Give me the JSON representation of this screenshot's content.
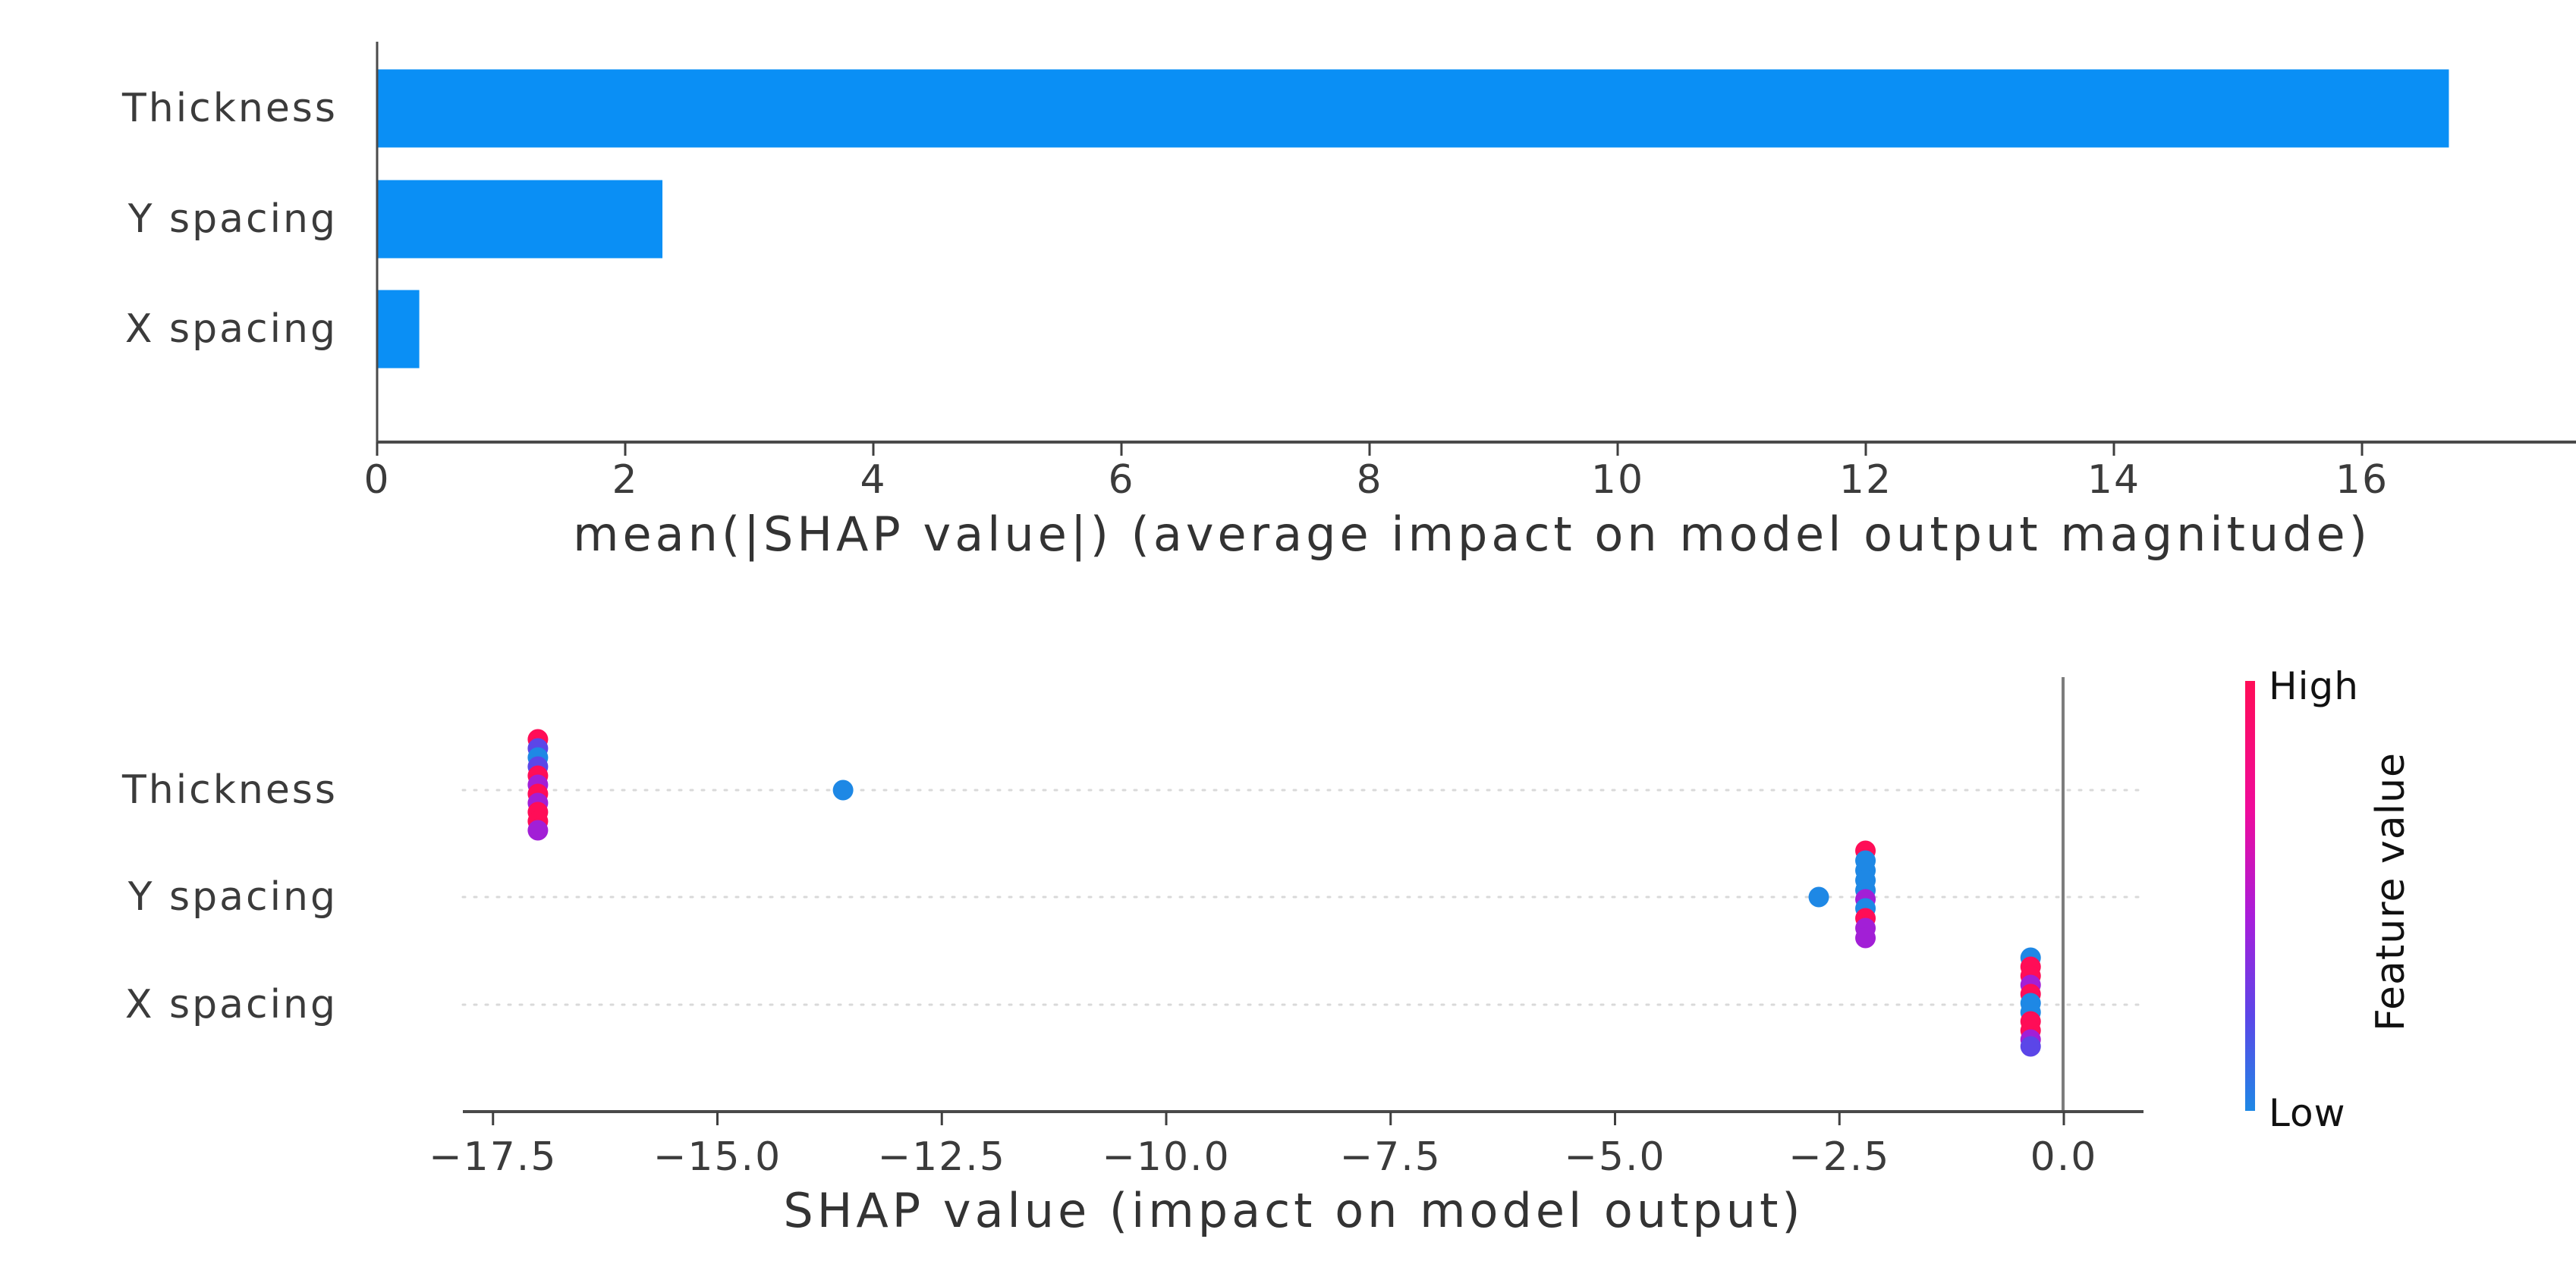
{
  "colors": {
    "bar_blue": "#0a8ff5",
    "dot_high": "#ff0d57",
    "dot_low": "#1e88e5",
    "dot_mid": "#a21fd6",
    "dot_violet": "#5b46e8",
    "axis": "#4a4a4a",
    "tick": "#3f3f3f",
    "grid": "#d9d9d9",
    "zero_line": "#7d7d7d",
    "text": "#333333"
  },
  "chart_data": [
    {
      "type": "bar",
      "title": "",
      "orientation": "horizontal",
      "categories": [
        "Thickness",
        "Y spacing",
        "X spacing"
      ],
      "values": [
        16.7,
        2.3,
        0.34
      ],
      "xlabel": "mean(|SHAP value|) (average impact on model output magnitude)",
      "ylabel": "",
      "xlim": [
        0,
        17.7
      ],
      "grid": false,
      "xticks": [
        {
          "v": 0,
          "label": "0"
        },
        {
          "v": 2,
          "label": "2"
        },
        {
          "v": 4,
          "label": "4"
        },
        {
          "v": 6,
          "label": "6"
        },
        {
          "v": 8,
          "label": "8"
        },
        {
          "v": 10,
          "label": "10"
        },
        {
          "v": 12,
          "label": "12"
        },
        {
          "v": 14,
          "label": "14"
        },
        {
          "v": 16,
          "label": "16"
        }
      ]
    },
    {
      "type": "scatter",
      "subtype": "shap-beeswarm",
      "title": "",
      "features": [
        "Thickness",
        "Y spacing",
        "X spacing"
      ],
      "xlabel": "SHAP value (impact on model output)",
      "xlim": [
        -18.4,
        0.9
      ],
      "grid": "dotted-rows",
      "zero_line_x": 0.0,
      "xticks": [
        {
          "v": -17.5,
          "label": "−17.5"
        },
        {
          "v": -15.0,
          "label": "−15.0"
        },
        {
          "v": -12.5,
          "label": "−12.5"
        },
        {
          "v": -10.0,
          "label": "−10.0"
        },
        {
          "v": -7.5,
          "label": "−7.5"
        },
        {
          "v": -5.0,
          "label": "−5.0"
        },
        {
          "v": -2.5,
          "label": "−2.5"
        },
        {
          "v": 0.0,
          "label": "0.0"
        }
      ],
      "points": {
        "Thickness": [
          {
            "v": -17.0,
            "dy": -67,
            "c": "dot_high"
          },
          {
            "v": -17.0,
            "dy": -55,
            "c": "dot_violet"
          },
          {
            "v": -17.0,
            "dy": -43,
            "c": "dot_low"
          },
          {
            "v": -17.0,
            "dy": -31,
            "c": "dot_violet"
          },
          {
            "v": -17.0,
            "dy": -19,
            "c": "dot_high"
          },
          {
            "v": -17.0,
            "dy": -7,
            "c": "dot_mid"
          },
          {
            "v": -17.0,
            "dy": 5,
            "c": "dot_high"
          },
          {
            "v": -17.0,
            "dy": 17,
            "c": "dot_mid"
          },
          {
            "v": -17.0,
            "dy": 29,
            "c": "dot_high"
          },
          {
            "v": -17.0,
            "dy": 41,
            "c": "dot_high"
          },
          {
            "v": -17.0,
            "dy": 53,
            "c": "dot_mid"
          },
          {
            "v": -13.6,
            "dy": 0,
            "c": "dot_low"
          }
        ],
        "Y spacing": [
          {
            "v": -2.21,
            "dy": -61,
            "c": "dot_high"
          },
          {
            "v": -2.21,
            "dy": -48,
            "c": "dot_low"
          },
          {
            "v": -2.21,
            "dy": -35,
            "c": "dot_low"
          },
          {
            "v": -2.21,
            "dy": -22,
            "c": "dot_low"
          },
          {
            "v": -2.21,
            "dy": -9,
            "c": "dot_low"
          },
          {
            "v": -2.21,
            "dy": 3,
            "c": "dot_mid"
          },
          {
            "v": -2.21,
            "dy": 15,
            "c": "dot_low"
          },
          {
            "v": -2.21,
            "dy": 28,
            "c": "dot_high"
          },
          {
            "v": -2.21,
            "dy": 41,
            "c": "dot_mid"
          },
          {
            "v": -2.21,
            "dy": 54,
            "c": "dot_mid"
          },
          {
            "v": -2.73,
            "dy": 0,
            "c": "dot_low"
          }
        ],
        "X spacing": [
          {
            "v": -0.37,
            "dy": -62,
            "c": "dot_low"
          },
          {
            "v": -0.37,
            "dy": -50,
            "c": "dot_high"
          },
          {
            "v": -0.37,
            "dy": -38,
            "c": "dot_high"
          },
          {
            "v": -0.37,
            "dy": -26,
            "c": "dot_mid"
          },
          {
            "v": -0.37,
            "dy": -14,
            "c": "dot_high"
          },
          {
            "v": -0.37,
            "dy": -2,
            "c": "dot_low"
          },
          {
            "v": -0.37,
            "dy": 10,
            "c": "dot_low"
          },
          {
            "v": -0.37,
            "dy": 22,
            "c": "dot_high"
          },
          {
            "v": -0.37,
            "dy": 34,
            "c": "dot_high"
          },
          {
            "v": -0.37,
            "dy": 46,
            "c": "dot_mid"
          },
          {
            "v": -0.37,
            "dy": 55,
            "c": "dot_violet"
          }
        ]
      },
      "colorbar": {
        "label": "Feature value",
        "high_label": "High",
        "low_label": "Low",
        "stops": [
          {
            "off": 0,
            "c": "#ff0d57"
          },
          {
            "off": 0.3,
            "c": "#ef0b9b"
          },
          {
            "off": 0.55,
            "c": "#a81ddb"
          },
          {
            "off": 0.78,
            "c": "#5b46e8"
          },
          {
            "off": 1,
            "c": "#1e88e5"
          }
        ]
      }
    }
  ]
}
